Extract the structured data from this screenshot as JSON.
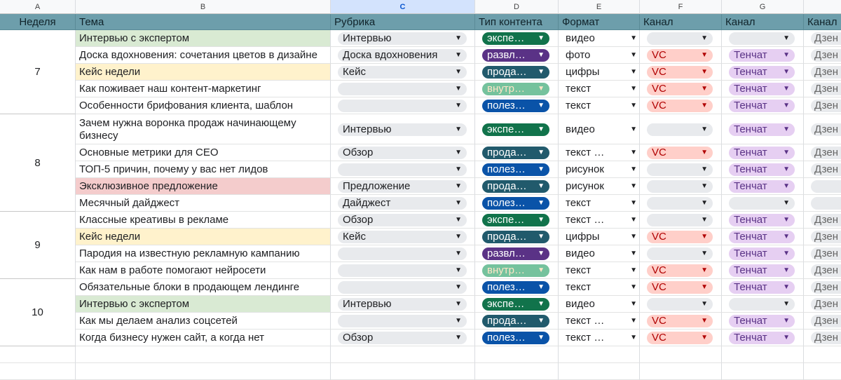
{
  "column_letters": [
    "A",
    "B",
    "C",
    "D",
    "E",
    "F",
    "G",
    ""
  ],
  "headers": [
    "Неделя",
    "Тема",
    "Рубрика",
    "Тип контента",
    "Формат",
    "Канал",
    "Канал",
    "Канал"
  ],
  "weeks": [
    {
      "label": "7",
      "start": 0,
      "count": 5
    },
    {
      "label": "8",
      "start": 5,
      "count": 5
    },
    {
      "label": "9",
      "start": 10,
      "count": 4
    },
    {
      "label": "10",
      "start": 14,
      "count": 4
    }
  ],
  "colors": {
    "header_bg": "#6d9eab",
    "selected_column": "#d3e3fd",
    "expert": "#11734b",
    "entertain": "#5a3286",
    "sales": "#215a6c",
    "internal": "#75c29d",
    "useful": "#0a53a8",
    "vc": "#ffcfc9",
    "tenchat": "#e6cff2"
  },
  "rows": [
    {
      "topic": "Интервью с экспертом",
      "hl": "green",
      "rubric": "Интервью",
      "type": "экспе…",
      "tone": "green",
      "format": "видео",
      "vc": "",
      "tc": "",
      "dz": "Дзен"
    },
    {
      "topic": "Доска вдохновения: сочетания цветов в дизайне",
      "hl": "",
      "rubric": "Доска вдохновения",
      "type": "развл…",
      "tone": "purple",
      "format": "фото",
      "vc": "VC",
      "tc": "Тенчат",
      "dz": "Дзен"
    },
    {
      "topic": "Кейс недели",
      "hl": "yellow",
      "rubric": "Кейс",
      "type": "прода…",
      "tone": "teal",
      "format": "цифры",
      "vc": "VC",
      "tc": "Тенчат",
      "dz": "Дзен"
    },
    {
      "topic": "Как поживает наш контент-маркетинг",
      "hl": "",
      "rubric": "",
      "type": "внутр…",
      "tone": "mint",
      "format": "текст",
      "vc": "VC",
      "tc": "Тенчат",
      "dz": "Дзен"
    },
    {
      "topic": "Особенности брифования клиента, шаблон",
      "hl": "",
      "rubric": "",
      "type": "полез…",
      "tone": "blue",
      "format": "текст",
      "vc": "VC",
      "tc": "Тенчат",
      "dz": "Дзен"
    },
    {
      "topic": "Зачем нужна воронка продаж начинающему бизнесу",
      "hl": "",
      "tall": true,
      "rubric": "Интервью",
      "type": "экспе…",
      "tone": "green",
      "format": "видео",
      "vc": "",
      "tc": "Тенчат",
      "dz": "Дзен"
    },
    {
      "topic": "Основные метрики для CEO",
      "hl": "",
      "rubric": "Обзор",
      "type": "прода…",
      "tone": "teal",
      "format": "текст …",
      "vc": "VC",
      "tc": "Тенчат",
      "dz": "Дзен"
    },
    {
      "topic": "ТОП-5 причин, почему у вас нет лидов",
      "hl": "",
      "rubric": "",
      "type": "полез…",
      "tone": "blue",
      "format": "рисунок",
      "vc": "",
      "tc": "Тенчат",
      "dz": "Дзен"
    },
    {
      "topic": "Эксклюзивное предложение",
      "hl": "red",
      "rubric": "Предложение",
      "type": "прода…",
      "tone": "teal",
      "format": "рисунок",
      "vc": "",
      "tc": "Тенчат",
      "dz": ""
    },
    {
      "topic": "Месячный дайджест",
      "hl": "",
      "rubric": "Дайджест",
      "type": "полез…",
      "tone": "blue",
      "format": "текст",
      "vc": "",
      "tc": "",
      "dz": ""
    },
    {
      "topic": "Классные креативы в рекламе",
      "hl": "",
      "rubric": "Обзор",
      "type": "экспе…",
      "tone": "green",
      "format": "текст …",
      "vc": "",
      "tc": "Тенчат",
      "dz": "Дзен"
    },
    {
      "topic": "Кейс недели",
      "hl": "yellow",
      "rubric": "Кейс",
      "type": "прода…",
      "tone": "teal",
      "format": "цифры",
      "vc": "VC",
      "tc": "Тенчат",
      "dz": "Дзен"
    },
    {
      "topic": "Пародия на известную рекламную кампанию",
      "hl": "",
      "rubric": "",
      "type": "развл…",
      "tone": "purple",
      "format": "видео",
      "vc": "",
      "tc": "Тенчат",
      "dz": "Дзен"
    },
    {
      "topic": "Как нам в работе помогают нейросети",
      "hl": "",
      "rubric": "",
      "type": "внутр…",
      "tone": "mint",
      "format": "текст",
      "vc": "VC",
      "tc": "Тенчат",
      "dz": "Дзен"
    },
    {
      "topic": "Обязательные блоки в продающем лендинге",
      "hl": "",
      "rubric": "",
      "type": "полез…",
      "tone": "blue",
      "format": "текст",
      "vc": "VC",
      "tc": "Тенчат",
      "dz": "Дзен"
    },
    {
      "topic": "Интервью с экспертом",
      "hl": "green",
      "rubric": "Интервью",
      "type": "экспе…",
      "tone": "green",
      "format": "видео",
      "vc": "",
      "tc": "",
      "dz": "Дзен"
    },
    {
      "topic": "Как мы делаем анализ соцсетей",
      "hl": "",
      "rubric": "",
      "type": "прода…",
      "tone": "teal",
      "format": "текст …",
      "vc": "VC",
      "tc": "Тенчат",
      "dz": "Дзен"
    },
    {
      "topic": "Когда бизнесу нужен сайт, а когда нет",
      "hl": "",
      "rubric": "Обзор",
      "type": "полез…",
      "tone": "blue",
      "format": "текст …",
      "vc": "VC",
      "tc": "Тенчат",
      "dz": "Дзен"
    }
  ]
}
